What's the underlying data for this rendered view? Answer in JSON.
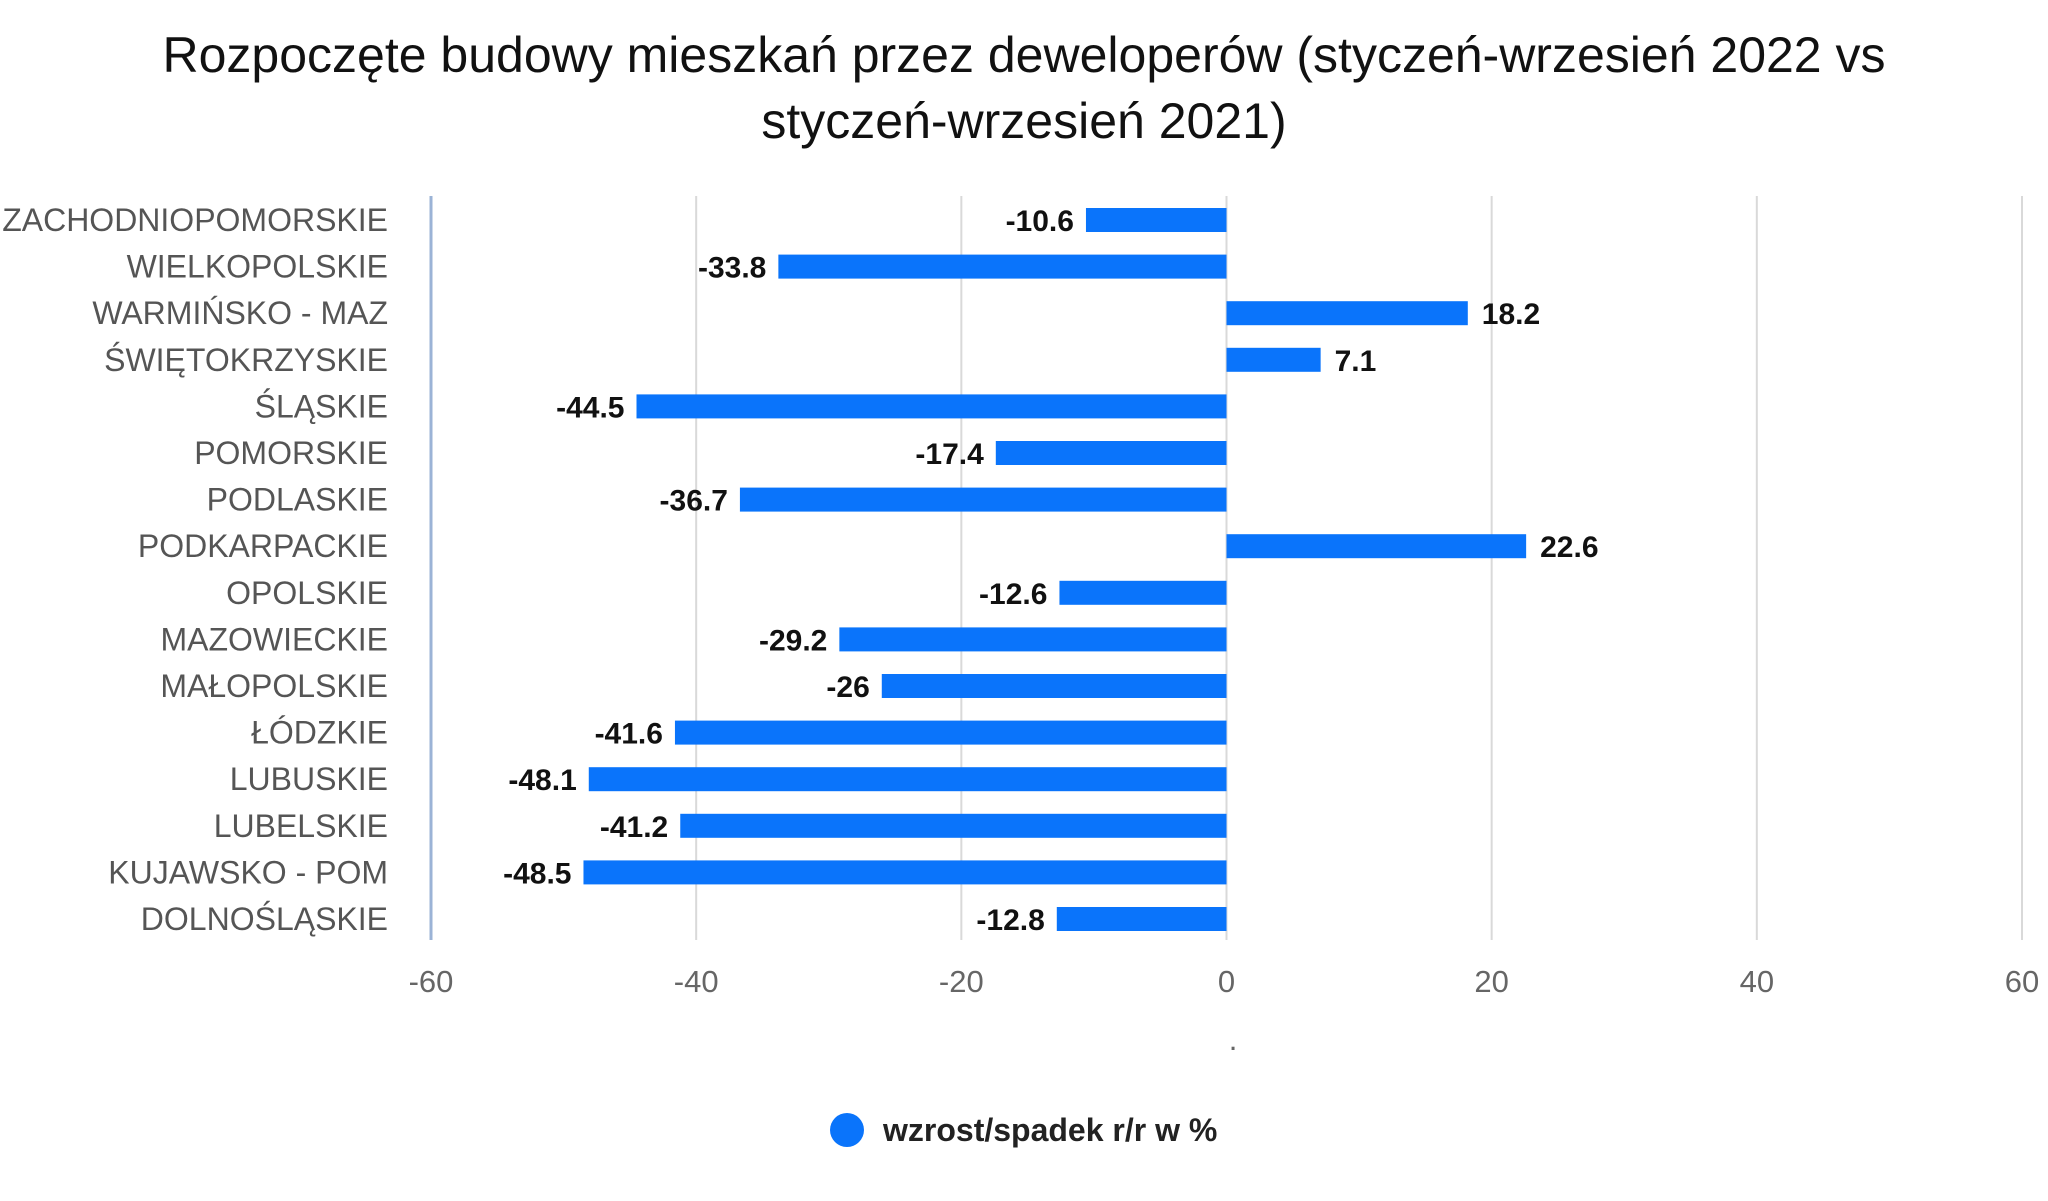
{
  "chart_data": {
    "type": "bar",
    "orientation": "horizontal",
    "title": "Rozpoczęte budowy mieszkań przez deweloperów (styczeń-wrzesień 2022 vs styczeń-wrzesień 2021)",
    "xlabel": ".",
    "ylabel": "",
    "xlim": [
      -60,
      60
    ],
    "xticks": [
      -60,
      -40,
      -20,
      0,
      20,
      40,
      60
    ],
    "grid": true,
    "legend_position": "bottom",
    "categories": [
      "ZACHODNIOPOMORSKIE",
      "WIELKOPOLSKIE",
      "WARMIŃSKO - MAZ",
      "ŚWIĘTOKRZYSKIE",
      "ŚLĄSKIE",
      "POMORSKIE",
      "PODLASKIE",
      "PODKARPACKIE",
      "OPOLSKIE",
      "MAZOWIECKIE",
      "MAŁOPOLSKIE",
      "ŁÓDZKIE",
      "LUBUSKIE",
      "LUBELSKIE",
      "KUJAWSKO - POM",
      "DOLNOŚLĄSKIE"
    ],
    "series": [
      {
        "name": "wzrost/spadek r/r w %",
        "color": "#0a74fb",
        "values": [
          -10.6,
          -33.8,
          18.2,
          7.1,
          -44.5,
          -17.4,
          -36.7,
          22.6,
          -12.6,
          -29.2,
          -26,
          -41.6,
          -48.1,
          -41.2,
          -48.5,
          -12.8
        ],
        "labels": [
          "-10.6",
          "-33.8",
          "18.2",
          "7.1",
          "-44.5",
          "-17.4",
          "-36.7",
          "22.6",
          "-12.6",
          "-29.2",
          "-26",
          "-41.6",
          "-48.1",
          "-41.2",
          "-48.5",
          "-12.8"
        ]
      }
    ]
  }
}
